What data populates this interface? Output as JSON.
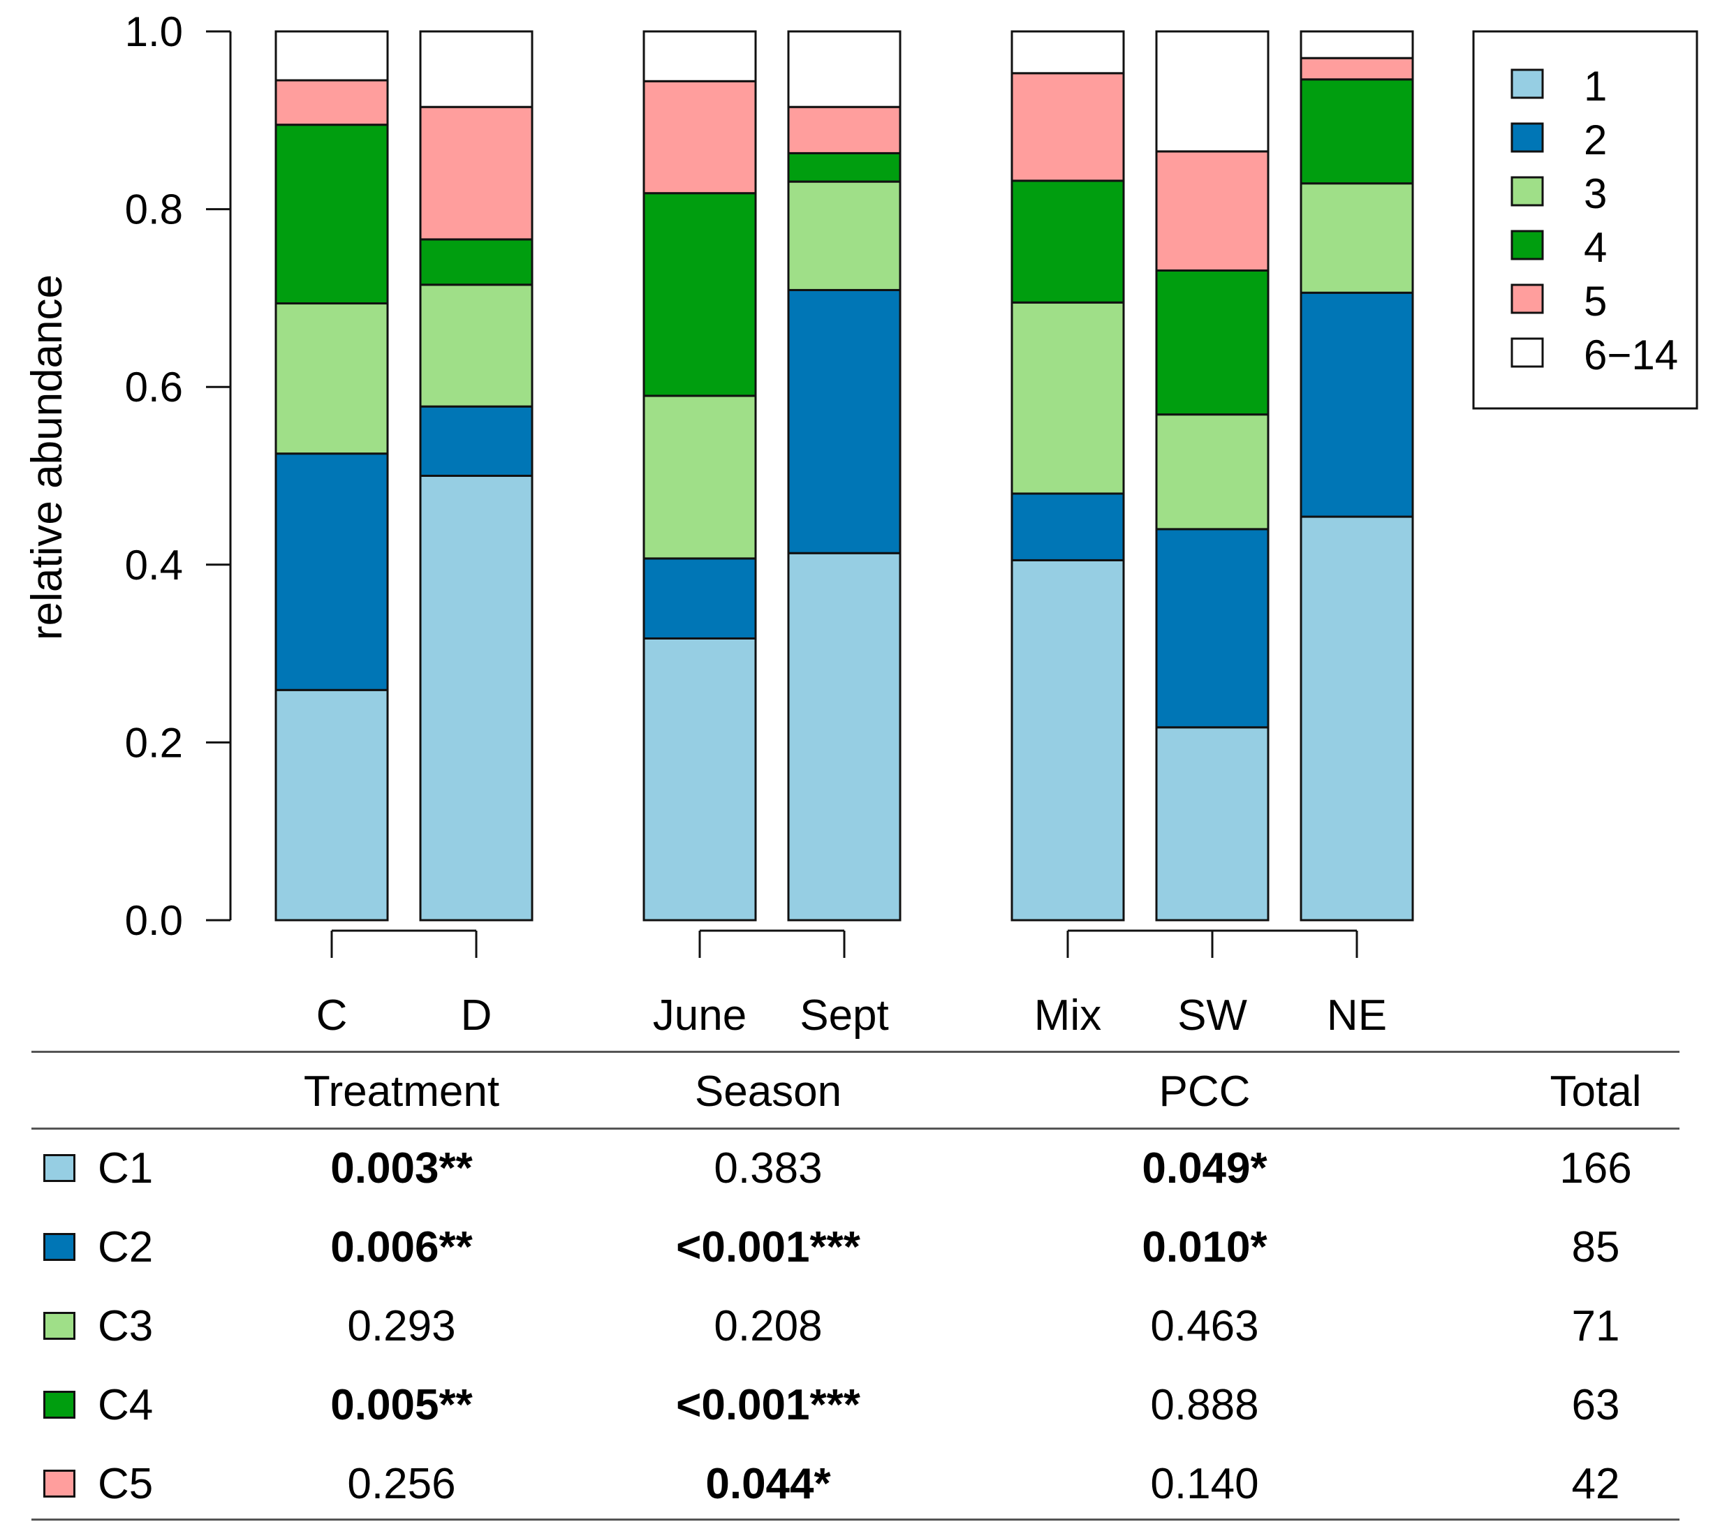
{
  "chart_data": {
    "type": "bar",
    "stacked": true,
    "ylabel": "relative abundance",
    "xlabel": "",
    "ylim": [
      0,
      1
    ],
    "yticks": [
      "0.0",
      "0.2",
      "0.4",
      "0.6",
      "0.8",
      "1.0"
    ],
    "legend_position": "top-right",
    "groups": [
      {
        "categories": [
          "C",
          "D"
        ]
      },
      {
        "categories": [
          "June",
          "Sept"
        ]
      },
      {
        "categories": [
          "Mix",
          "SW",
          "NE"
        ]
      }
    ],
    "categories": [
      "C",
      "D",
      "June",
      "Sept",
      "Mix",
      "SW",
      "NE"
    ],
    "series": [
      {
        "name": "1",
        "color": "#96CEE3",
        "values": [
          0.259,
          0.5,
          0.317,
          0.413,
          0.405,
          0.217,
          0.454
        ]
      },
      {
        "name": "2",
        "color": "#0076B6",
        "values": [
          0.266,
          0.078,
          0.09,
          0.296,
          0.075,
          0.223,
          0.252
        ]
      },
      {
        "name": "3",
        "color": "#9FDF88",
        "values": [
          0.169,
          0.137,
          0.183,
          0.122,
          0.215,
          0.129,
          0.123
        ]
      },
      {
        "name": "4",
        "color": "#009E0F",
        "values": [
          0.201,
          0.051,
          0.228,
          0.032,
          0.137,
          0.162,
          0.117
        ]
      },
      {
        "name": "5",
        "color": "#FF9E9D",
        "values": [
          0.05,
          0.149,
          0.126,
          0.052,
          0.121,
          0.134,
          0.024
        ]
      },
      {
        "name": "6−14",
        "color": "#FFFFFF",
        "values": [
          0.055,
          0.085,
          0.056,
          0.085,
          0.047,
          0.135,
          0.03
        ]
      }
    ]
  },
  "table": {
    "headers": [
      "",
      "Treatment",
      "Season",
      "PCC",
      "Total"
    ],
    "rows": [
      {
        "label": "C1",
        "color": "#96CEE3",
        "treatment": {
          "value": "0.003",
          "stars": "**",
          "bold": true
        },
        "season": {
          "value": "0.383",
          "stars": "",
          "bold": false
        },
        "pcc": {
          "value": "0.049",
          "stars": "*",
          "bold": true
        },
        "total": "166"
      },
      {
        "label": "C2",
        "color": "#0076B6",
        "treatment": {
          "value": "0.006",
          "stars": "**",
          "bold": true
        },
        "season": {
          "value": "<0.001",
          "stars": "***",
          "bold": true
        },
        "pcc": {
          "value": "0.010",
          "stars": "*",
          "bold": true
        },
        "total": "85"
      },
      {
        "label": "C3",
        "color": "#9FDF88",
        "treatment": {
          "value": "0.293",
          "stars": "",
          "bold": false
        },
        "season": {
          "value": "0.208",
          "stars": "",
          "bold": false
        },
        "pcc": {
          "value": "0.463",
          "stars": "",
          "bold": false
        },
        "total": "71"
      },
      {
        "label": "C4",
        "color": "#009E0F",
        "treatment": {
          "value": "0.005",
          "stars": "**",
          "bold": true
        },
        "season": {
          "value": "<0.001",
          "stars": "***",
          "bold": true
        },
        "pcc": {
          "value": "0.888",
          "stars": "",
          "bold": false
        },
        "total": "63"
      },
      {
        "label": "C5",
        "color": "#FF9E9D",
        "treatment": {
          "value": "0.256",
          "stars": "",
          "bold": false
        },
        "season": {
          "value": "0.044",
          "stars": "*",
          "bold": true
        },
        "pcc": {
          "value": "0.140",
          "stars": "",
          "bold": false
        },
        "total": "42"
      }
    ]
  }
}
